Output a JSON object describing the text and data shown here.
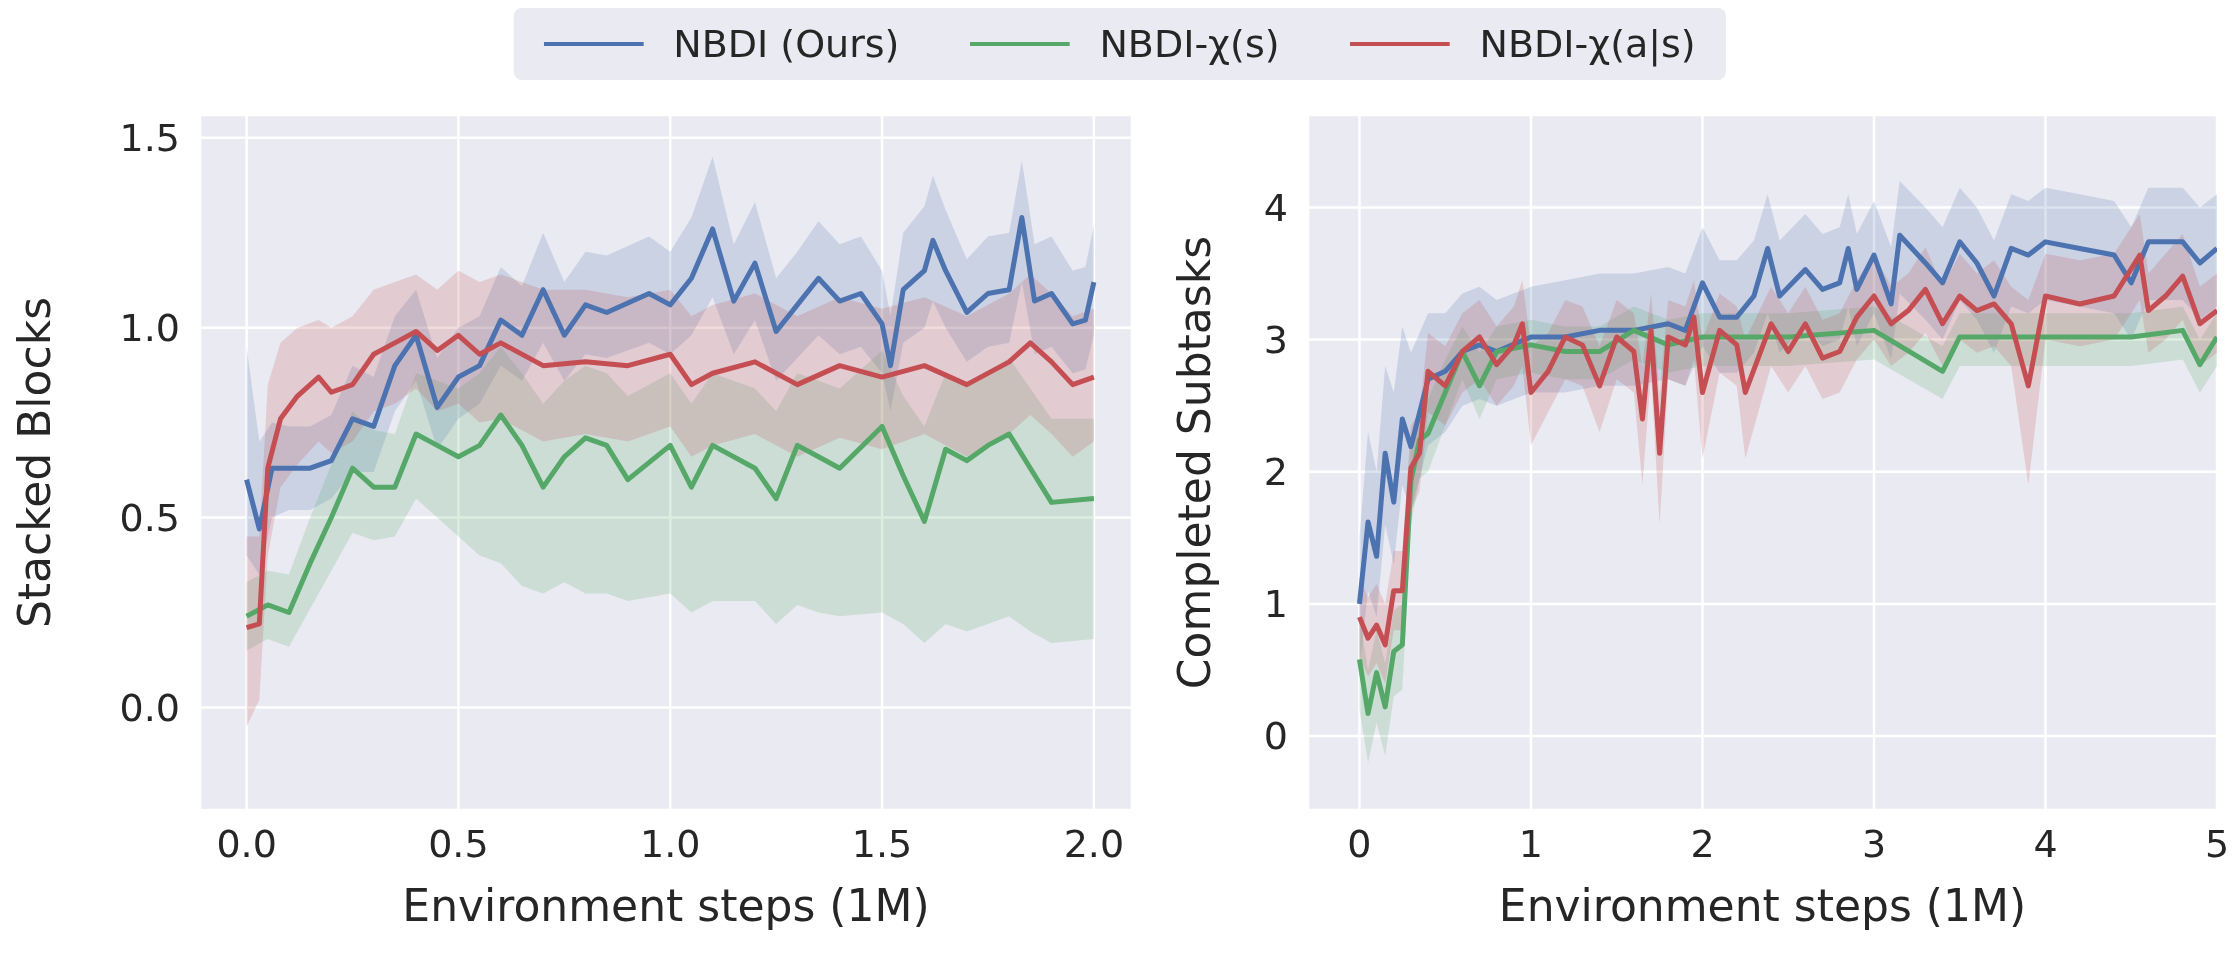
{
  "chart_data": [
    {
      "type": "line",
      "xlabel": "Environment steps (1M)",
      "ylabel": "Stacked Blocks",
      "xlim": [
        -0.11,
        2.09
      ],
      "ylim": [
        -0.27,
        1.56
      ],
      "xticks": [
        {
          "value": 0,
          "label": "0.0"
        },
        0.5,
        {
          "value": 1,
          "label": "1.0"
        },
        1.5,
        {
          "value": 2,
          "label": "2.0"
        }
      ],
      "yticks": [
        {
          "value": 0,
          "label": "0.0"
        },
        0.5,
        {
          "value": 1,
          "label": "1.0"
        },
        1.5
      ],
      "grid": true,
      "legend": "top",
      "series": [
        {
          "name": "NBDI (Ours)",
          "color": "#4c72b0",
          "x": [
            0,
            0.03,
            0.06,
            0.1,
            0.15,
            0.2,
            0.25,
            0.3,
            0.35,
            0.4,
            0.45,
            0.5,
            0.55,
            0.6,
            0.65,
            0.7,
            0.75,
            0.8,
            0.85,
            0.95,
            1.0,
            1.05,
            1.1,
            1.15,
            1.2,
            1.25,
            1.3,
            1.35,
            1.4,
            1.45,
            1.5,
            1.52,
            1.55,
            1.6,
            1.62,
            1.65,
            1.7,
            1.75,
            1.8,
            1.83,
            1.86,
            1.9,
            1.95,
            1.98,
            2.0
          ],
          "values": [
            0.6,
            0.47,
            0.63,
            0.63,
            0.63,
            0.65,
            0.76,
            0.74,
            0.9,
            0.98,
            0.79,
            0.87,
            0.9,
            1.02,
            0.98,
            1.1,
            0.98,
            1.06,
            1.04,
            1.09,
            1.06,
            1.13,
            1.26,
            1.07,
            1.17,
            0.99,
            1.06,
            1.13,
            1.07,
            1.09,
            1.01,
            0.9,
            1.1,
            1.15,
            1.23,
            1.15,
            1.04,
            1.09,
            1.1,
            1.29,
            1.07,
            1.09,
            1.01,
            1.02,
            1.12
          ],
          "lower": [
            0.4,
            0.35,
            0.5,
            0.52,
            0.52,
            0.55,
            0.62,
            0.62,
            0.78,
            0.86,
            0.68,
            0.76,
            0.8,
            0.9,
            0.86,
            0.96,
            0.86,
            0.93,
            0.92,
            0.96,
            0.93,
            0.98,
            1.08,
            0.93,
            1.02,
            0.86,
            0.92,
            0.98,
            0.93,
            0.95,
            0.88,
            0.78,
            0.96,
            1.0,
            1.07,
            1.0,
            0.91,
            0.95,
            0.96,
            1.12,
            0.93,
            0.95,
            0.88,
            0.89,
            0.98
          ],
          "upper": [
            0.95,
            0.7,
            0.75,
            0.74,
            0.74,
            0.77,
            0.9,
            0.87,
            1.03,
            1.1,
            0.92,
            1.0,
            1.03,
            1.16,
            1.11,
            1.25,
            1.12,
            1.2,
            1.19,
            1.24,
            1.2,
            1.29,
            1.45,
            1.22,
            1.33,
            1.13,
            1.2,
            1.28,
            1.22,
            1.24,
            1.15,
            1.03,
            1.25,
            1.32,
            1.4,
            1.31,
            1.18,
            1.24,
            1.25,
            1.44,
            1.22,
            1.24,
            1.15,
            1.16,
            1.27
          ]
        },
        {
          "name": "NBDI-χ(s)",
          "color": "#55a868",
          "x": [
            0,
            0.05,
            0.1,
            0.15,
            0.2,
            0.25,
            0.3,
            0.35,
            0.4,
            0.45,
            0.5,
            0.55,
            0.6,
            0.65,
            0.7,
            0.75,
            0.8,
            0.85,
            0.9,
            1.0,
            1.05,
            1.1,
            1.2,
            1.25,
            1.3,
            1.35,
            1.4,
            1.5,
            1.55,
            1.6,
            1.65,
            1.7,
            1.75,
            1.8,
            1.85,
            1.9,
            2.0
          ],
          "values": [
            0.24,
            0.27,
            0.25,
            0.38,
            0.5,
            0.63,
            0.58,
            0.58,
            0.72,
            0.69,
            0.66,
            0.69,
            0.77,
            0.69,
            0.58,
            0.66,
            0.71,
            0.69,
            0.6,
            0.69,
            0.58,
            0.69,
            0.63,
            0.55,
            0.69,
            0.66,
            0.63,
            0.74,
            0.61,
            0.49,
            0.68,
            0.65,
            0.69,
            0.72,
            0.63,
            0.54,
            0.55
          ],
          "lower": [
            0.15,
            0.18,
            0.16,
            0.26,
            0.36,
            0.46,
            0.44,
            0.45,
            0.55,
            0.5,
            0.45,
            0.4,
            0.38,
            0.32,
            0.3,
            0.33,
            0.3,
            0.3,
            0.28,
            0.3,
            0.25,
            0.28,
            0.28,
            0.22,
            0.27,
            0.25,
            0.24,
            0.25,
            0.22,
            0.17,
            0.22,
            0.2,
            0.22,
            0.24,
            0.2,
            0.17,
            0.18
          ],
          "upper": [
            0.33,
            0.36,
            0.35,
            0.5,
            0.64,
            0.78,
            0.73,
            0.72,
            0.88,
            0.86,
            0.84,
            0.88,
            0.95,
            0.88,
            0.8,
            0.86,
            0.9,
            0.88,
            0.82,
            0.88,
            0.8,
            0.88,
            0.84,
            0.78,
            0.88,
            0.86,
            0.84,
            0.94,
            0.82,
            0.74,
            0.88,
            0.85,
            0.88,
            0.92,
            0.84,
            0.76,
            0.76
          ]
        },
        {
          "name": "NBDI-χ(a|s)",
          "color": "#c44e52",
          "x": [
            0,
            0.03,
            0.05,
            0.08,
            0.12,
            0.17,
            0.2,
            0.25,
            0.3,
            0.35,
            0.4,
            0.45,
            0.5,
            0.55,
            0.6,
            0.7,
            0.8,
            0.9,
            1.0,
            1.05,
            1.1,
            1.2,
            1.3,
            1.4,
            1.5,
            1.6,
            1.7,
            1.8,
            1.85,
            1.9,
            1.95,
            2.0
          ],
          "values": [
            0.21,
            0.22,
            0.63,
            0.76,
            0.82,
            0.87,
            0.83,
            0.85,
            0.93,
            0.96,
            0.99,
            0.94,
            0.98,
            0.93,
            0.96,
            0.9,
            0.91,
            0.9,
            0.93,
            0.85,
            0.88,
            0.91,
            0.85,
            0.9,
            0.87,
            0.9,
            0.85,
            0.91,
            0.96,
            0.91,
            0.85,
            0.87
          ],
          "lower": [
            -0.05,
            0.02,
            0.4,
            0.58,
            0.64,
            0.7,
            0.67,
            0.7,
            0.78,
            0.8,
            0.84,
            0.78,
            0.8,
            0.75,
            0.76,
            0.7,
            0.72,
            0.7,
            0.74,
            0.66,
            0.69,
            0.72,
            0.66,
            0.71,
            0.68,
            0.72,
            0.66,
            0.72,
            0.77,
            0.72,
            0.66,
            0.7
          ],
          "upper": [
            0.45,
            0.45,
            0.85,
            0.96,
            1.0,
            1.02,
            1.0,
            1.03,
            1.1,
            1.12,
            1.14,
            1.1,
            1.15,
            1.12,
            1.14,
            1.1,
            1.1,
            1.08,
            1.1,
            1.03,
            1.06,
            1.09,
            1.03,
            1.08,
            1.05,
            1.08,
            1.03,
            1.09,
            1.14,
            1.09,
            1.03,
            1.05
          ]
        }
      ]
    },
    {
      "type": "line",
      "xlabel": "Environment steps (1M)",
      "ylabel": "Completed Subtasks",
      "xlim": [
        -0.3,
        5
      ],
      "ylim": [
        -0.56,
        4.7
      ],
      "xticks": [
        0,
        1,
        2,
        3,
        4,
        5
      ],
      "yticks": [
        0,
        1,
        2,
        3,
        4
      ],
      "grid": true,
      "series": [
        {
          "color": "#4c72b0",
          "x": [
            0,
            0.05,
            0.1,
            0.15,
            0.2,
            0.25,
            0.3,
            0.4,
            0.5,
            0.6,
            0.7,
            0.8,
            1.0,
            1.2,
            1.4,
            1.6,
            1.8,
            1.9,
            2.0,
            2.1,
            2.2,
            2.3,
            2.38,
            2.45,
            2.6,
            2.7,
            2.8,
            2.85,
            2.9,
            3.0,
            3.1,
            3.15,
            3.3,
            3.4,
            3.5,
            3.6,
            3.7,
            3.8,
            3.9,
            4.0,
            4.2,
            4.4,
            4.5,
            4.6,
            4.8,
            4.9,
            5.0
          ],
          "values": [
            1.0,
            1.62,
            1.36,
            2.14,
            1.77,
            2.4,
            2.19,
            2.7,
            2.76,
            2.91,
            2.96,
            2.91,
            3.02,
            3.02,
            3.07,
            3.07,
            3.12,
            3.07,
            3.43,
            3.17,
            3.17,
            3.33,
            3.69,
            3.33,
            3.53,
            3.38,
            3.43,
            3.69,
            3.38,
            3.64,
            3.27,
            3.79,
            3.58,
            3.43,
            3.74,
            3.58,
            3.33,
            3.69,
            3.64,
            3.74,
            3.69,
            3.64,
            3.43,
            3.74,
            3.74,
            3.58,
            3.69
          ],
          "lower": [
            0.5,
            1.1,
            0.9,
            1.6,
            1.3,
            1.9,
            1.7,
            2.2,
            2.3,
            2.5,
            2.55,
            2.5,
            2.6,
            2.6,
            2.65,
            2.65,
            2.7,
            2.65,
            2.95,
            2.75,
            2.75,
            2.9,
            3.2,
            2.9,
            3.1,
            2.95,
            3.0,
            3.25,
            2.95,
            3.2,
            2.85,
            3.35,
            3.15,
            3.0,
            3.3,
            3.15,
            2.9,
            3.25,
            3.2,
            3.3,
            3.25,
            3.2,
            3.0,
            3.3,
            3.3,
            3.15,
            3.25
          ],
          "upper": [
            1.5,
            2.3,
            2.0,
            2.8,
            2.6,
            3.1,
            2.9,
            3.2,
            3.2,
            3.35,
            3.4,
            3.3,
            3.4,
            3.45,
            3.5,
            3.5,
            3.55,
            3.5,
            3.85,
            3.6,
            3.6,
            3.75,
            4.1,
            3.75,
            3.95,
            3.8,
            3.85,
            4.1,
            3.8,
            4.05,
            3.7,
            4.2,
            4.0,
            3.85,
            4.15,
            4.0,
            3.75,
            4.1,
            4.05,
            4.15,
            4.1,
            4.05,
            3.85,
            4.15,
            4.15,
            4.0,
            4.1
          ]
        },
        {
          "color": "#55a868",
          "x": [
            0,
            0.05,
            0.1,
            0.15,
            0.2,
            0.25,
            0.3,
            0.35,
            0.4,
            0.5,
            0.6,
            0.7,
            0.8,
            1.0,
            1.2,
            1.4,
            1.6,
            1.8,
            2.0,
            2.5,
            3.0,
            3.4,
            3.5,
            4.0,
            4.5,
            4.8,
            4.9,
            5.0
          ],
          "values": [
            0.58,
            0.17,
            0.48,
            0.22,
            0.64,
            0.69,
            1.93,
            2.24,
            2.29,
            2.6,
            2.91,
            2.65,
            2.91,
            2.96,
            2.91,
            2.91,
            3.07,
            2.96,
            3.02,
            3.02,
            3.07,
            2.76,
            3.02,
            3.02,
            3.02,
            3.07,
            2.81,
            3.02
          ],
          "lower": [
            0.2,
            -0.2,
            0.1,
            -0.15,
            0.3,
            0.35,
            1.6,
            1.95,
            2.0,
            2.35,
            2.7,
            2.4,
            2.7,
            2.75,
            2.7,
            2.7,
            2.85,
            2.75,
            2.8,
            2.8,
            2.85,
            2.55,
            2.8,
            2.8,
            2.8,
            2.85,
            2.6,
            2.8
          ],
          "upper": [
            0.9,
            0.5,
            0.8,
            0.55,
            0.95,
            1.0,
            2.2,
            2.5,
            2.55,
            2.85,
            3.1,
            2.9,
            3.1,
            3.15,
            3.1,
            3.1,
            3.25,
            3.15,
            3.2,
            3.2,
            3.25,
            2.95,
            3.2,
            3.2,
            3.2,
            3.25,
            3.0,
            3.2
          ]
        },
        {
          "color": "#c44e52",
          "x": [
            0,
            0.05,
            0.1,
            0.15,
            0.2,
            0.25,
            0.3,
            0.35,
            0.4,
            0.5,
            0.6,
            0.7,
            0.8,
            0.9,
            0.95,
            1.0,
            1.1,
            1.2,
            1.3,
            1.4,
            1.5,
            1.6,
            1.65,
            1.7,
            1.75,
            1.8,
            1.9,
            1.95,
            2.0,
            2.1,
            2.2,
            2.25,
            2.4,
            2.5,
            2.6,
            2.7,
            2.8,
            2.9,
            3.0,
            3.1,
            3.2,
            3.3,
            3.4,
            3.5,
            3.6,
            3.7,
            3.8,
            3.9,
            4.0,
            4.2,
            4.4,
            4.55,
            4.6,
            4.7,
            4.8,
            4.9,
            5.0
          ],
          "values": [
            0.9,
            0.74,
            0.84,
            0.69,
            1.1,
            1.1,
            2.03,
            2.14,
            2.76,
            2.65,
            2.91,
            3.02,
            2.81,
            2.96,
            3.12,
            2.6,
            2.76,
            3.02,
            2.96,
            2.65,
            3.02,
            2.91,
            2.4,
            3.07,
            2.14,
            3.02,
            2.96,
            3.17,
            2.6,
            3.07,
            2.96,
            2.6,
            3.12,
            2.91,
            3.12,
            2.86,
            2.91,
            3.17,
            3.33,
            3.12,
            3.22,
            3.38,
            3.12,
            3.33,
            3.22,
            3.27,
            3.12,
            2.65,
            3.33,
            3.27,
            3.33,
            3.64,
            3.22,
            3.33,
            3.48,
            3.12,
            3.22
          ],
          "lower": [
            0.6,
            0.45,
            0.55,
            0.4,
            0.8,
            0.8,
            1.7,
            1.85,
            2.45,
            2.35,
            2.6,
            2.7,
            2.5,
            2.65,
            2.8,
            2.2,
            2.45,
            2.7,
            2.65,
            2.3,
            2.7,
            2.6,
            1.9,
            2.75,
            1.6,
            2.7,
            2.65,
            2.85,
            2.1,
            2.75,
            2.65,
            2.1,
            2.8,
            2.6,
            2.8,
            2.55,
            2.6,
            2.85,
            3.0,
            2.8,
            2.9,
            3.05,
            2.8,
            3.0,
            2.9,
            2.95,
            2.8,
            1.9,
            3.0,
            2.95,
            3.0,
            3.3,
            2.9,
            3.0,
            3.15,
            2.8,
            2.9
          ],
          "upper": [
            1.2,
            1.05,
            1.15,
            1.0,
            1.4,
            1.4,
            2.35,
            2.45,
            3.05,
            2.95,
            3.2,
            3.3,
            3.1,
            3.25,
            3.45,
            2.95,
            3.05,
            3.3,
            3.25,
            2.95,
            3.3,
            3.2,
            2.8,
            3.35,
            2.6,
            3.3,
            3.25,
            3.45,
            3.0,
            3.35,
            3.25,
            3.0,
            3.4,
            3.2,
            3.4,
            3.15,
            3.2,
            3.45,
            3.65,
            3.4,
            3.5,
            3.7,
            3.4,
            3.65,
            3.5,
            3.6,
            3.4,
            3.3,
            3.65,
            3.6,
            3.65,
            3.95,
            3.5,
            3.65,
            3.8,
            3.4,
            3.5
          ]
        }
      ]
    }
  ]
}
